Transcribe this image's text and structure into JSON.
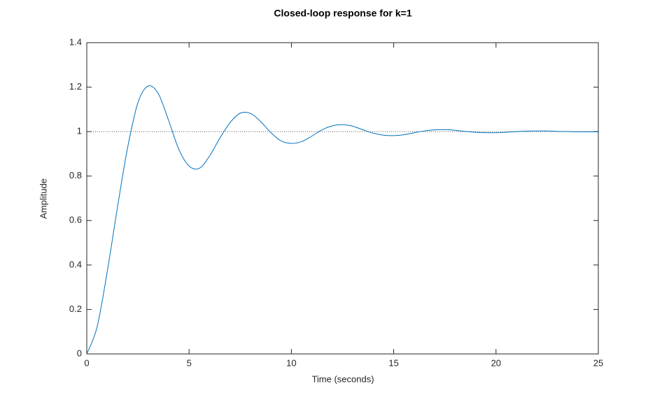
{
  "chart_data": {
    "type": "line",
    "title": "Closed-loop response for k=1",
    "xlabel": "Time (seconds)",
    "ylabel": "Amplitude",
    "x": [
      0,
      0.5,
      1,
      1.5,
      2,
      2.5,
      3,
      3.5,
      4,
      4.5,
      5,
      5.5,
      6,
      6.5,
      7,
      7.5,
      8,
      8.5,
      9,
      9.5,
      10,
      10.5,
      11,
      11.5,
      12,
      12.5,
      13,
      13.5,
      14,
      14.5,
      15,
      15.5,
      16,
      16.5,
      17,
      17.5,
      18,
      18.5,
      19,
      19.5,
      20,
      20.5,
      21,
      21.5,
      22,
      22.5,
      23,
      23.5,
      24,
      24.5,
      25
    ],
    "series": [
      {
        "color": "#0072bd",
        "values": [
          0,
          0.12,
          0.37,
          0.66,
          0.93,
          1.13,
          1.205,
          1.17,
          1.05,
          0.92,
          0.845,
          0.835,
          0.89,
          0.97,
          1.04,
          1.083,
          1.082,
          1.045,
          0.995,
          0.958,
          0.947,
          0.955,
          0.98,
          1.008,
          1.026,
          1.031,
          1.024,
          1.008,
          0.993,
          0.984,
          0.982,
          0.986,
          0.995,
          1.003,
          1.008,
          1.009,
          1.006,
          1.001,
          0.997,
          0.995,
          0.995,
          0.997,
          1.0,
          1.002,
          1.003,
          1.003,
          1.001,
          1.0,
          0.999,
          0.999,
          0.999
        ]
      }
    ],
    "hline": 1,
    "xlim": [
      0,
      25
    ],
    "xticks": [
      0,
      5,
      10,
      15,
      20,
      25
    ],
    "ylim": [
      0,
      1.4
    ],
    "yticks": [
      0,
      0.2,
      0.4,
      0.6,
      0.8,
      1,
      1.2,
      1.4
    ]
  }
}
